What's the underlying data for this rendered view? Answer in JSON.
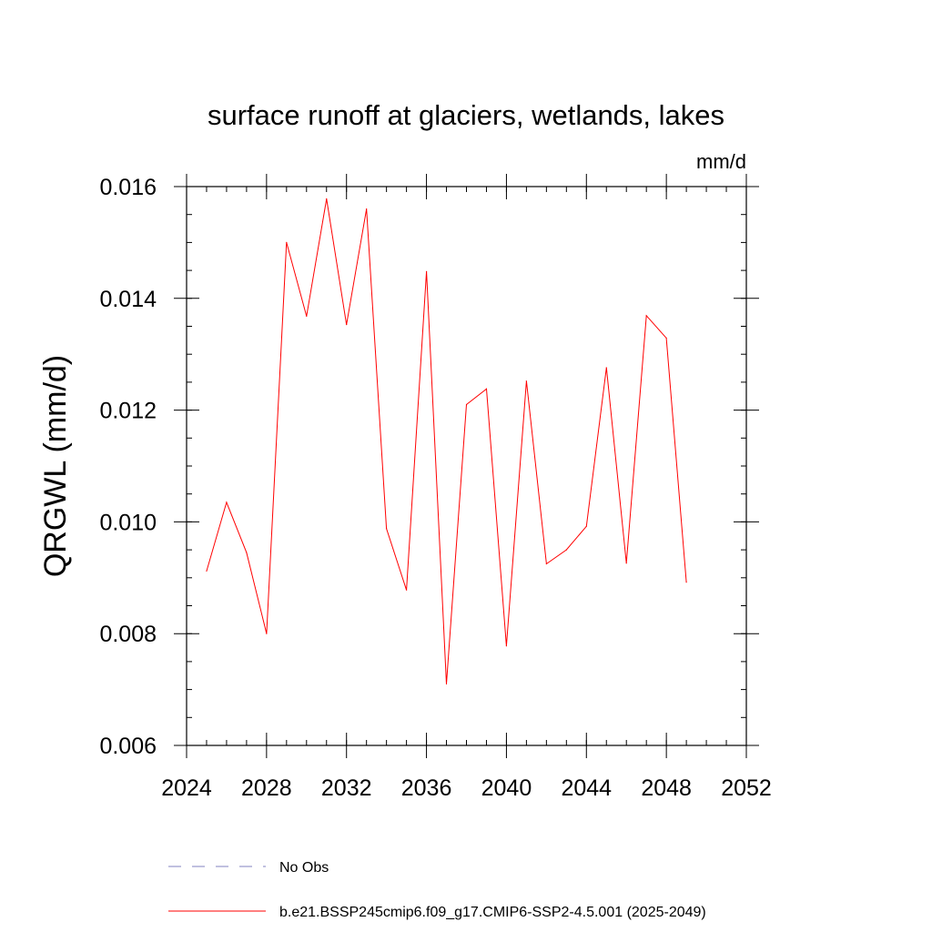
{
  "chart_data": {
    "type": "line",
    "title": "surface runoff at glaciers, wetlands, lakes",
    "units": "mm/d",
    "ylabel": "QRGWL  (mm/d)",
    "xlabel": "",
    "xlim": [
      2024,
      2052
    ],
    "ylim": [
      0.006,
      0.016
    ],
    "x_ticks": [
      2024,
      2028,
      2032,
      2036,
      2040,
      2044,
      2048,
      2052
    ],
    "x_tick_labels": [
      "2024",
      "2028",
      "2032",
      "2036",
      "2040",
      "2044",
      "2048",
      "2052"
    ],
    "y_ticks": [
      0.006,
      0.008,
      0.01,
      0.012,
      0.014,
      0.016
    ],
    "y_tick_labels": [
      "0.006",
      "0.008",
      "0.010",
      "0.012",
      "0.014",
      "0.016"
    ],
    "grid": false,
    "legend_position": "bottom",
    "series": [
      {
        "name": "b.e21.BSSP245cmip6.f09_g17.CMIP6-SSP2-4.5.001 (2025-2049)",
        "color": "#ff0000",
        "x": [
          2025,
          2026,
          2027,
          2028,
          2029,
          2030,
          2031,
          2032,
          2033,
          2034,
          2035,
          2036,
          2037,
          2038,
          2039,
          2040,
          2041,
          2042,
          2043,
          2044,
          2045,
          2046,
          2047,
          2048,
          2049
        ],
        "y": [
          0.00912,
          0.01035,
          0.00945,
          0.008,
          0.015,
          0.01368,
          0.01578,
          0.01353,
          0.0156,
          0.00988,
          0.00878,
          0.01448,
          0.0071,
          0.0121,
          0.01238,
          0.00778,
          0.01252,
          0.00925,
          0.0095,
          0.00992,
          0.01276,
          0.00926,
          0.01369,
          0.01329,
          0.00892
        ]
      }
    ],
    "legend": [
      {
        "label": "No Obs",
        "color": "#8080c0",
        "dash": true
      },
      {
        "label": "b.e21.BSSP245cmip6.f09_g17.CMIP6-SSP2-4.5.001 (2025-2049)",
        "color": "#ff0000",
        "dash": false
      }
    ]
  }
}
